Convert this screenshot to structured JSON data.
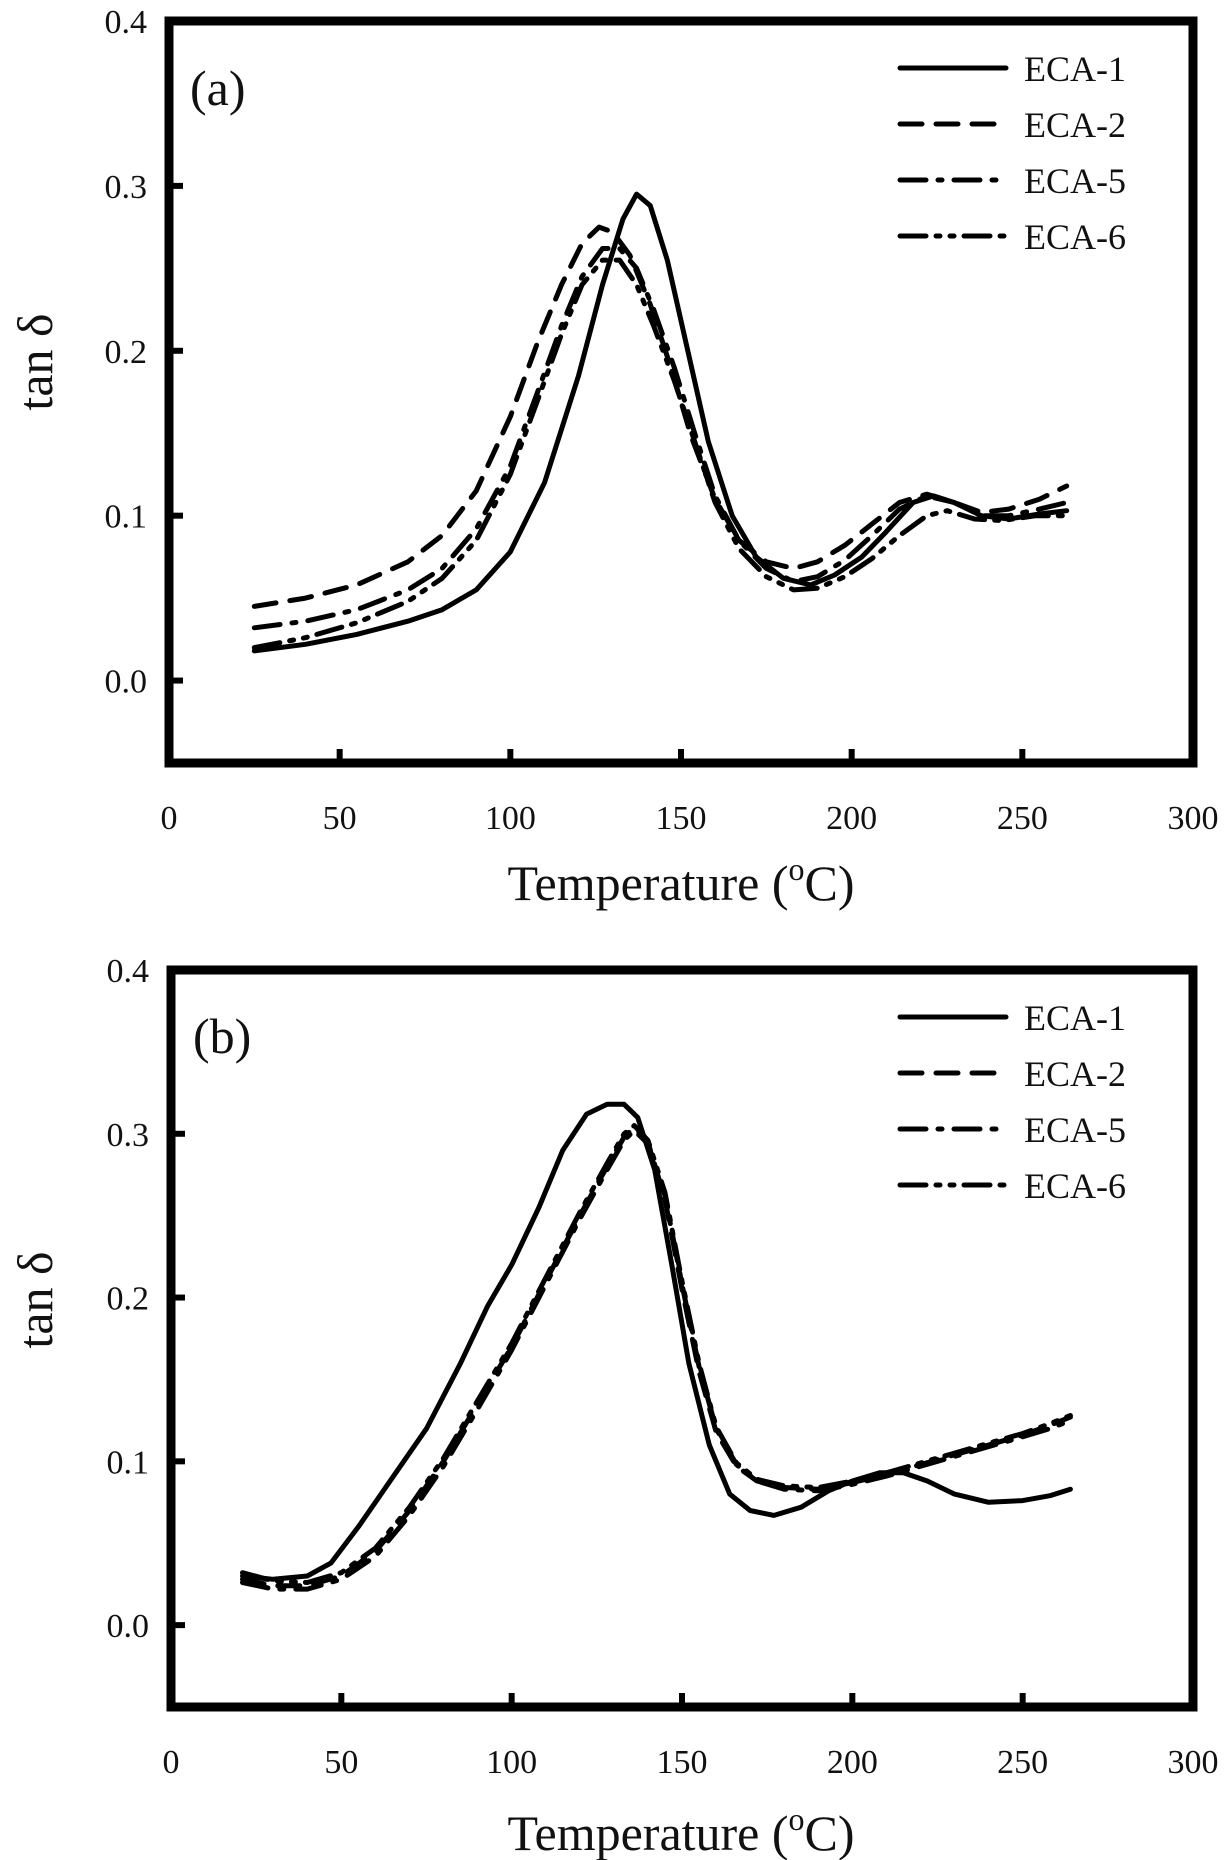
{
  "chart_data": [
    {
      "type": "line",
      "panel_label": "(a)",
      "title": "",
      "xlabel": "Temperature (oC)",
      "xlabel_base": "Temperature (",
      "xlabel_sup": "o",
      "xlabel_end": "C)",
      "ylabel": "tan δ",
      "xlim": [
        0,
        300
      ],
      "ylim": [
        -0.05,
        0.4
      ],
      "xticks": [
        0,
        50,
        100,
        150,
        200,
        250,
        300
      ],
      "xtick_labels": [
        "0",
        "50",
        "100",
        "150",
        "200",
        "250",
        "300"
      ],
      "yticks": [
        0.0,
        0.1,
        0.2,
        0.3,
        0.4
      ],
      "ytick_labels": [
        "0.0",
        "0.1",
        "0.2",
        "0.3",
        "0.4"
      ],
      "grid": false,
      "legend_position": "top-right",
      "series": [
        {
          "name": "ECA-1",
          "style": "solid",
          "x": [
            25,
            40,
            55,
            70,
            80,
            90,
            100,
            110,
            120,
            127,
            133,
            137,
            141,
            146,
            152,
            158,
            165,
            172,
            180,
            188,
            195,
            203,
            210,
            218,
            224,
            230,
            238,
            246,
            255,
            263
          ],
          "y": [
            0.018,
            0.022,
            0.028,
            0.036,
            0.043,
            0.055,
            0.078,
            0.12,
            0.185,
            0.24,
            0.28,
            0.295,
            0.288,
            0.255,
            0.2,
            0.145,
            0.1,
            0.075,
            0.062,
            0.058,
            0.064,
            0.075,
            0.09,
            0.108,
            0.112,
            0.108,
            0.1,
            0.098,
            0.101,
            0.103
          ]
        },
        {
          "name": "ECA-2",
          "style": "dashed",
          "x": [
            25,
            40,
            55,
            70,
            80,
            90,
            100,
            108,
            115,
            121,
            126,
            130,
            135,
            141,
            147,
            153,
            160,
            167,
            175,
            183,
            190,
            198,
            206,
            214,
            222,
            230,
            238,
            246,
            255,
            263
          ],
          "y": [
            0.045,
            0.05,
            0.058,
            0.072,
            0.088,
            0.115,
            0.16,
            0.205,
            0.24,
            0.265,
            0.275,
            0.272,
            0.258,
            0.228,
            0.19,
            0.148,
            0.11,
            0.085,
            0.072,
            0.068,
            0.072,
            0.082,
            0.095,
            0.108,
            0.113,
            0.108,
            0.102,
            0.104,
            0.11,
            0.118
          ]
        },
        {
          "name": "ECA-5",
          "style": "dash-dot",
          "x": [
            25,
            40,
            55,
            70,
            80,
            90,
            100,
            108,
            115,
            121,
            127,
            132,
            137,
            142,
            148,
            154,
            160,
            167,
            175,
            183,
            190,
            198,
            206,
            214,
            222,
            230,
            238,
            246,
            255,
            263
          ],
          "y": [
            0.032,
            0.036,
            0.043,
            0.055,
            0.068,
            0.092,
            0.13,
            0.175,
            0.215,
            0.245,
            0.262,
            0.262,
            0.25,
            0.225,
            0.19,
            0.15,
            0.112,
            0.085,
            0.068,
            0.06,
            0.063,
            0.073,
            0.088,
            0.104,
            0.112,
            0.108,
            0.1,
            0.1,
            0.104,
            0.108
          ]
        },
        {
          "name": "ECA-6",
          "style": "dash-dot-dot",
          "x": [
            25,
            40,
            55,
            70,
            80,
            90,
            100,
            108,
            115,
            121,
            127,
            132,
            137,
            142,
            148,
            154,
            160,
            167,
            175,
            183,
            190,
            198,
            206,
            214,
            222,
            228,
            236,
            244,
            254,
            263
          ],
          "y": [
            0.02,
            0.026,
            0.035,
            0.048,
            0.062,
            0.085,
            0.125,
            0.17,
            0.21,
            0.24,
            0.255,
            0.255,
            0.24,
            0.215,
            0.182,
            0.145,
            0.108,
            0.08,
            0.063,
            0.055,
            0.056,
            0.063,
            0.074,
            0.088,
            0.1,
            0.103,
            0.098,
            0.097,
            0.1,
            0.1
          ]
        }
      ]
    },
    {
      "type": "line",
      "panel_label": "(b)",
      "title": "",
      "xlabel": "Temperature (oC)",
      "xlabel_base": "Temperature (",
      "xlabel_sup": "o",
      "xlabel_end": "C)",
      "ylabel": "tan δ",
      "xlim": [
        0,
        300
      ],
      "ylim": [
        -0.05,
        0.4
      ],
      "xticks": [
        0,
        50,
        100,
        150,
        200,
        250,
        300
      ],
      "xtick_labels": [
        "0",
        "50",
        "100",
        "150",
        "200",
        "250",
        "300"
      ],
      "yticks": [
        0.0,
        0.1,
        0.2,
        0.3,
        0.4
      ],
      "ytick_labels": [
        "0.0",
        "0.1",
        "0.2",
        "0.3",
        "0.4"
      ],
      "grid": false,
      "legend_position": "top-right",
      "series": [
        {
          "name": "ECA-1",
          "style": "solid",
          "x": [
            21,
            30,
            40,
            47,
            55,
            65,
            75,
            85,
            93,
            100,
            108,
            115,
            122,
            128,
            133,
            137,
            142,
            147,
            152,
            158,
            164,
            170,
            177,
            185,
            193,
            200,
            208,
            215,
            222,
            230,
            240,
            250,
            258,
            264
          ],
          "y": [
            0.03,
            0.028,
            0.03,
            0.038,
            0.06,
            0.09,
            0.12,
            0.16,
            0.195,
            0.22,
            0.255,
            0.29,
            0.312,
            0.318,
            0.318,
            0.31,
            0.278,
            0.22,
            0.16,
            0.11,
            0.08,
            0.07,
            0.067,
            0.072,
            0.082,
            0.088,
            0.093,
            0.093,
            0.088,
            0.08,
            0.075,
            0.076,
            0.079,
            0.083
          ]
        },
        {
          "name": "ECA-2",
          "style": "dashed",
          "x": [
            21,
            30,
            40,
            50,
            60,
            70,
            80,
            90,
            100,
            110,
            120,
            128,
            133,
            136,
            140,
            145,
            150,
            155,
            160,
            166,
            172,
            180,
            190,
            200,
            210,
            220,
            230,
            240,
            250,
            258,
            264
          ],
          "y": [
            0.028,
            0.024,
            0.024,
            0.03,
            0.045,
            0.07,
            0.1,
            0.135,
            0.17,
            0.21,
            0.25,
            0.28,
            0.298,
            0.304,
            0.295,
            0.26,
            0.205,
            0.155,
            0.118,
            0.097,
            0.088,
            0.084,
            0.083,
            0.087,
            0.092,
            0.098,
            0.104,
            0.11,
            0.116,
            0.122,
            0.127
          ]
        },
        {
          "name": "ECA-5",
          "style": "dash-dot",
          "x": [
            21,
            30,
            40,
            50,
            60,
            70,
            80,
            90,
            100,
            110,
            120,
            128,
            133,
            136,
            140,
            145,
            150,
            155,
            160,
            166,
            172,
            180,
            190,
            200,
            210,
            220,
            230,
            240,
            250,
            258,
            264
          ],
          "y": [
            0.026,
            0.022,
            0.022,
            0.028,
            0.042,
            0.067,
            0.097,
            0.132,
            0.168,
            0.208,
            0.248,
            0.278,
            0.296,
            0.302,
            0.294,
            0.262,
            0.208,
            0.158,
            0.12,
            0.098,
            0.088,
            0.083,
            0.082,
            0.086,
            0.091,
            0.097,
            0.103,
            0.109,
            0.115,
            0.12,
            0.125
          ]
        },
        {
          "name": "ECA-6",
          "style": "dash-dot-dot",
          "x": [
            21,
            30,
            40,
            50,
            60,
            70,
            80,
            90,
            100,
            110,
            120,
            128,
            133,
            136,
            140,
            145,
            150,
            155,
            160,
            166,
            172,
            180,
            190,
            200,
            210,
            220,
            230,
            240,
            250,
            258,
            264
          ],
          "y": [
            0.032,
            0.027,
            0.026,
            0.032,
            0.047,
            0.072,
            0.102,
            0.137,
            0.172,
            0.212,
            0.252,
            0.282,
            0.3,
            0.305,
            0.296,
            0.264,
            0.21,
            0.16,
            0.121,
            0.099,
            0.089,
            0.085,
            0.084,
            0.088,
            0.093,
            0.099,
            0.105,
            0.111,
            0.117,
            0.123,
            0.128
          ]
        }
      ]
    }
  ]
}
